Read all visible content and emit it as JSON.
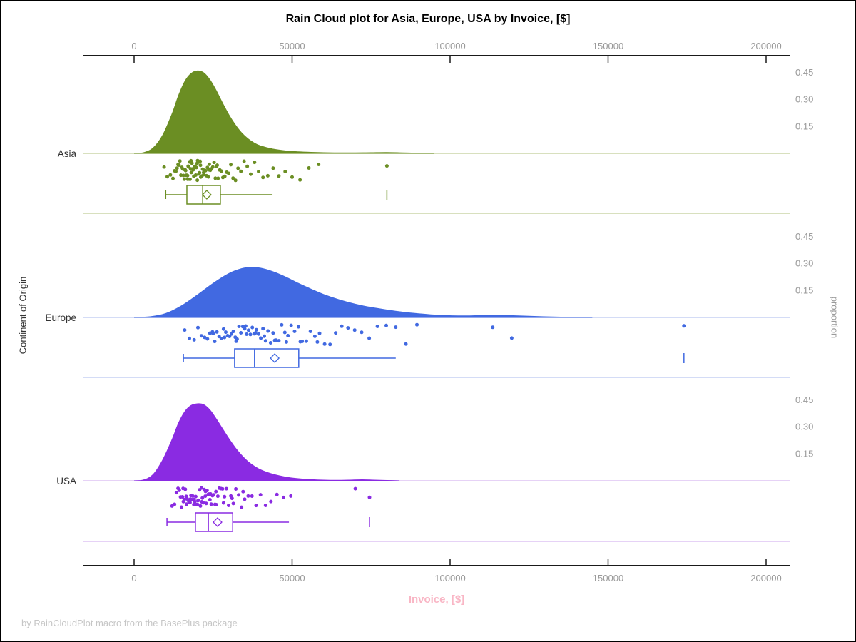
{
  "chart_data": {
    "type": "raincloud",
    "title": "Rain Cloud plot for Asia, Europe, USA by Invoice, [$]",
    "xlabel": "Invoice, [$]",
    "ylabel": "Continent of Origin",
    "ylabel_right": "proportion",
    "footer": "by RainCloudPlot macro from the BasePlus package",
    "x_axis": {
      "min": 0,
      "max": 200000,
      "ticks": [
        0,
        50000,
        100000,
        150000,
        200000
      ],
      "tick_labels": [
        "0",
        "50000",
        "100000",
        "150000",
        "200000"
      ]
    },
    "proportion_axis": {
      "ticks": [
        0.45,
        0.3,
        0.15
      ],
      "tick_labels": [
        "0.45",
        "0.30",
        "0.15"
      ]
    },
    "colors": {
      "axis": "#1a1a1a",
      "tick_label": "#9a9a9a",
      "title": "#000000",
      "xlabel_pink": "#f9b6c5",
      "footer": "#c6c6c6",
      "category_label": "#333333"
    },
    "groups": [
      {
        "name": "Asia",
        "color": "#6b8e23",
        "light_color": "#ccd6a8",
        "density": [
          [
            0,
            0
          ],
          [
            3000,
            0.004
          ],
          [
            6000,
            0.03
          ],
          [
            9000,
            0.1
          ],
          [
            12000,
            0.22
          ],
          [
            14000,
            0.32
          ],
          [
            16000,
            0.4
          ],
          [
            18000,
            0.445
          ],
          [
            20000,
            0.46
          ],
          [
            22000,
            0.45
          ],
          [
            24000,
            0.41
          ],
          [
            26000,
            0.35
          ],
          [
            28000,
            0.28
          ],
          [
            30000,
            0.215
          ],
          [
            32000,
            0.16
          ],
          [
            34000,
            0.115
          ],
          [
            36000,
            0.082
          ],
          [
            38000,
            0.058
          ],
          [
            40000,
            0.042
          ],
          [
            44000,
            0.024
          ],
          [
            48000,
            0.014
          ],
          [
            52000,
            0.009
          ],
          [
            56000,
            0.006
          ],
          [
            60000,
            0.004
          ],
          [
            65000,
            0.003
          ],
          [
            70000,
            0.003
          ],
          [
            75000,
            0.004
          ],
          [
            80000,
            0.005
          ],
          [
            85000,
            0.003
          ],
          [
            90000,
            0.001
          ],
          [
            95000,
            0
          ]
        ],
        "rain": [
          9500,
          10500,
          11500,
          12300,
          12800,
          13200,
          13600,
          13900,
          14200,
          14500,
          14800,
          15100,
          15400,
          15600,
          15900,
          16100,
          16300,
          16500,
          16700,
          16900,
          17100,
          17300,
          17500,
          17700,
          17900,
          18100,
          18300,
          18500,
          18700,
          18900,
          19100,
          19300,
          19500,
          19700,
          19900,
          20100,
          20300,
          20500,
          20700,
          20900,
          21100,
          21400,
          21700,
          22000,
          22300,
          22600,
          22900,
          23200,
          23500,
          23800,
          24100,
          24500,
          24900,
          25300,
          25700,
          26100,
          26600,
          27100,
          27600,
          28100,
          28700,
          29300,
          29900,
          30600,
          31300,
          32100,
          32900,
          33800,
          34800,
          35800,
          36900,
          38100,
          39400,
          40800,
          42300,
          44000,
          45800,
          47800,
          50000,
          52500,
          55300,
          58400,
          16000,
          17000,
          18000,
          19000,
          20000,
          21000,
          22000,
          23600,
          26300,
          80000
        ],
        "box": {
          "whisker_low": 10000,
          "q1": 16700,
          "median": 21700,
          "q3": 27300,
          "whisker_high": 43800,
          "mean": 23000,
          "outliers": [
            80000
          ]
        }
      },
      {
        "name": "Europe",
        "color": "#4169e1",
        "light_color": "#c5d0f4",
        "density": [
          [
            0,
            0
          ],
          [
            5000,
            0.004
          ],
          [
            10000,
            0.022
          ],
          [
            15000,
            0.065
          ],
          [
            20000,
            0.125
          ],
          [
            25000,
            0.19
          ],
          [
            30000,
            0.245
          ],
          [
            34000,
            0.272
          ],
          [
            37000,
            0.28
          ],
          [
            40000,
            0.275
          ],
          [
            44000,
            0.255
          ],
          [
            48000,
            0.225
          ],
          [
            52000,
            0.19
          ],
          [
            56000,
            0.158
          ],
          [
            60000,
            0.128
          ],
          [
            65000,
            0.098
          ],
          [
            70000,
            0.074
          ],
          [
            75000,
            0.056
          ],
          [
            80000,
            0.042
          ],
          [
            85000,
            0.03
          ],
          [
            90000,
            0.021
          ],
          [
            95000,
            0.014
          ],
          [
            100000,
            0.01
          ],
          [
            105000,
            0.009
          ],
          [
            110000,
            0.011
          ],
          [
            115000,
            0.012
          ],
          [
            120000,
            0.01
          ],
          [
            125000,
            0.007
          ],
          [
            130000,
            0.004
          ],
          [
            135000,
            0.002
          ],
          [
            140000,
            0.001
          ],
          [
            145000,
            0
          ]
        ],
        "rain": [
          16000,
          17500,
          19000,
          20200,
          21300,
          22300,
          23200,
          24000,
          24800,
          25500,
          26200,
          26900,
          27600,
          28300,
          29000,
          29600,
          30200,
          30800,
          31400,
          32000,
          32600,
          33200,
          33800,
          34400,
          35000,
          35600,
          36200,
          36800,
          37400,
          38000,
          38700,
          39400,
          40100,
          40800,
          41600,
          42400,
          43200,
          44000,
          44900,
          45800,
          46700,
          47700,
          48700,
          49700,
          50800,
          52000,
          53200,
          54500,
          55800,
          57200,
          58700,
          60300,
          62000,
          63800,
          65700,
          67700,
          69800,
          72000,
          74400,
          77000,
          79800,
          82800,
          86000,
          89500,
          25000,
          28600,
          32300,
          35300,
          38400,
          41200,
          44500,
          48200,
          52600,
          58000,
          113500,
          119500,
          174000
        ],
        "box": {
          "whisker_low": 15600,
          "q1": 31800,
          "median": 38100,
          "q3": 52100,
          "whisker_high": 82800,
          "mean": 44500,
          "outliers": [
            174000
          ]
        }
      },
      {
        "name": "USA",
        "color": "#8a2be2",
        "light_color": "#ddc4f4",
        "density": [
          [
            0,
            0
          ],
          [
            3000,
            0.005
          ],
          [
            6000,
            0.035
          ],
          [
            9000,
            0.115
          ],
          [
            12000,
            0.23
          ],
          [
            14000,
            0.32
          ],
          [
            16000,
            0.385
          ],
          [
            18000,
            0.42
          ],
          [
            20000,
            0.43
          ],
          [
            22000,
            0.425
          ],
          [
            24000,
            0.395
          ],
          [
            26000,
            0.345
          ],
          [
            28000,
            0.29
          ],
          [
            30000,
            0.235
          ],
          [
            32000,
            0.185
          ],
          [
            34000,
            0.143
          ],
          [
            36000,
            0.108
          ],
          [
            38000,
            0.082
          ],
          [
            40000,
            0.062
          ],
          [
            43000,
            0.042
          ],
          [
            46000,
            0.028
          ],
          [
            49000,
            0.018
          ],
          [
            52000,
            0.012
          ],
          [
            56000,
            0.007
          ],
          [
            60000,
            0.004
          ],
          [
            64000,
            0.003
          ],
          [
            68000,
            0.004
          ],
          [
            72000,
            0.006
          ],
          [
            76000,
            0.004
          ],
          [
            80000,
            0.002
          ],
          [
            84000,
            0
          ]
        ],
        "rain": [
          12000,
          12800,
          13400,
          13900,
          14300,
          14700,
          15000,
          15300,
          15600,
          15900,
          16200,
          16500,
          16800,
          17100,
          17400,
          17700,
          18000,
          18300,
          18600,
          18900,
          19200,
          19500,
          19800,
          20100,
          20400,
          20700,
          21000,
          21300,
          21600,
          21900,
          22200,
          22500,
          22800,
          23100,
          23400,
          23700,
          24000,
          24400,
          24800,
          25200,
          25600,
          26000,
          26500,
          27000,
          27500,
          28000,
          28600,
          29200,
          29900,
          30600,
          31400,
          32200,
          33100,
          34000,
          35000,
          36100,
          37300,
          38600,
          40000,
          41600,
          43300,
          45200,
          47300,
          49600,
          15500,
          16600,
          17800,
          19000,
          20200,
          21400,
          22600,
          24200,
          25900,
          28300,
          31000,
          34500,
          70000,
          74500
        ],
        "box": {
          "whisker_low": 10400,
          "q1": 19400,
          "median": 23500,
          "q3": 31200,
          "whisker_high": 49000,
          "mean": 26400,
          "outliers": [
            74500
          ]
        }
      }
    ]
  }
}
